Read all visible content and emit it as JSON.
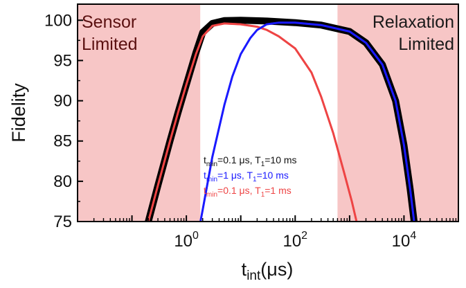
{
  "chart_data": {
    "type": "line",
    "title": "",
    "xlabel": {
      "main": "t",
      "sub": "int",
      "units": "(μs)"
    },
    "ylabel": "Fidelity",
    "x_scale": "log",
    "xlim": [
      0.01,
      100000
    ],
    "ylim": [
      75,
      102
    ],
    "x_ticks": [
      {
        "value": 1,
        "base": "10",
        "exp": "0"
      },
      {
        "value": 100,
        "base": "10",
        "exp": "2"
      },
      {
        "value": 10000,
        "base": "10",
        "exp": "4"
      }
    ],
    "y_ticks": [
      75,
      80,
      85,
      90,
      95,
      100
    ],
    "grid": false,
    "shaded_regions": [
      {
        "x_range": [
          0.01,
          1.8
        ],
        "color": "#f7c6c6",
        "label_lines": [
          "Sensor",
          "Limited"
        ],
        "label_color": "#5a1010"
      },
      {
        "x_range": [
          600,
          100000
        ],
        "color": "#f7c6c6",
        "label_lines": [
          "Relaxation",
          "Limited"
        ],
        "label_color": "#1a1a1a"
      }
    ],
    "series": [
      {
        "color": "#000000",
        "legend": {
          "t": "t",
          "sub": "min",
          "mid": "=0.1 μs, T",
          "sub2": "1",
          "end": "=10 ms"
        },
        "x": [
          0.15,
          0.2,
          0.3,
          0.5,
          0.7,
          1,
          1.5,
          2,
          3,
          5,
          10,
          30,
          100,
          300,
          1000,
          2000,
          4000,
          7000,
          10000,
          13000,
          16000
        ],
        "y": [
          72.5,
          75,
          79.5,
          85,
          88.5,
          92,
          96,
          98.5,
          99.6,
          99.95,
          100,
          99.9,
          99.7,
          99.4,
          98.6,
          97.2,
          94.5,
          90,
          84.5,
          79,
          74
        ]
      },
      {
        "color": "#1a1aff",
        "legend": {
          "t": "t",
          "sub": "min",
          "mid": "=1 μs, T",
          "sub2": "1",
          "end": "=10 ms"
        },
        "x": [
          1.6,
          2,
          3,
          5,
          7,
          10,
          15,
          20,
          30,
          50,
          100,
          300,
          1000,
          2000,
          4000,
          7000,
          10000,
          13000,
          16000
        ],
        "y": [
          73,
          76.5,
          83,
          89.5,
          93,
          95.8,
          97.8,
          98.8,
          99.5,
          99.7,
          99.7,
          99.4,
          98.6,
          97.2,
          94.5,
          90,
          84.5,
          79,
          74
        ]
      },
      {
        "color": "#ee4444",
        "legend": {
          "t": "t",
          "sub": "min",
          "mid": "=0.1 μs, T",
          "sub2": "1",
          "end": "=1 ms"
        },
        "x": [
          0.15,
          0.2,
          0.3,
          0.5,
          0.7,
          1,
          1.5,
          2,
          3,
          5,
          10,
          20,
          30,
          50,
          100,
          200,
          300,
          500,
          800,
          1100,
          1400,
          1700
        ],
        "y": [
          72.5,
          75,
          79.5,
          85,
          88.5,
          92,
          95.8,
          98,
          99.3,
          99.6,
          99.5,
          99.2,
          98.8,
          98,
          96.5,
          93.5,
          90.5,
          86,
          81,
          77.5,
          74.5,
          72
        ]
      }
    ]
  }
}
